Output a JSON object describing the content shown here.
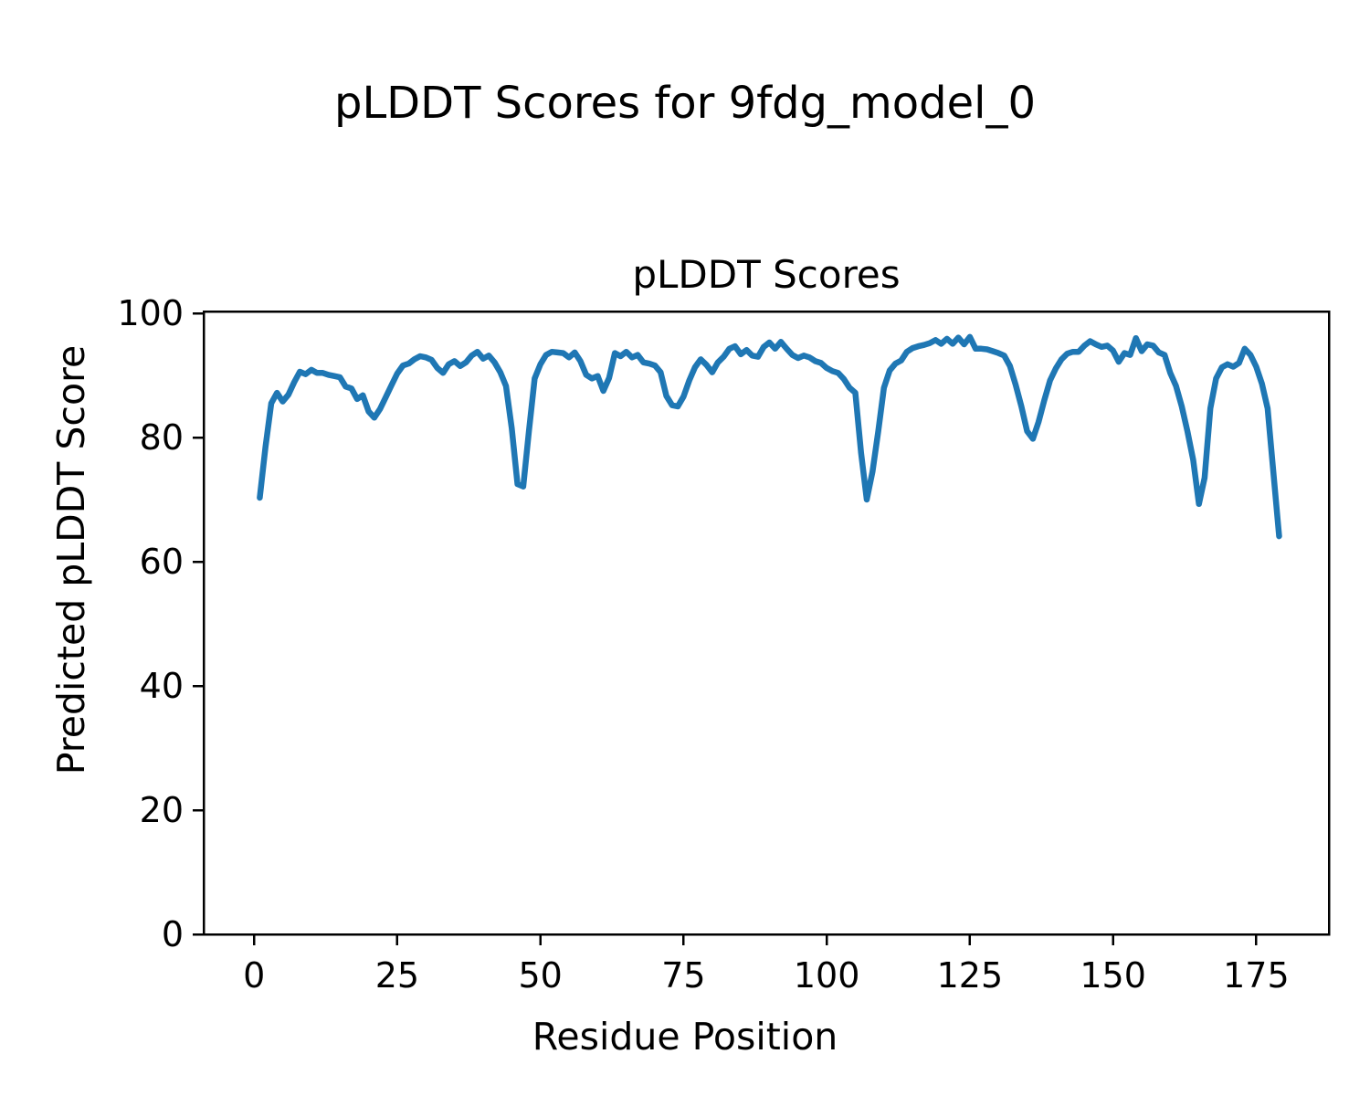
{
  "figure": {
    "suptitle": "pLDDT Scores for 9fdg_model_0",
    "background": "#ffffff",
    "text_color": "#000000"
  },
  "chart_data": {
    "type": "line",
    "title": "pLDDT Scores",
    "xlabel": "Residue Position",
    "ylabel": "Predicted pLDDT Score",
    "legend": null,
    "grid": false,
    "line_color": "#1f77b4",
    "line_width": 6.5,
    "spine_color": "#000000",
    "xlim": [
      -8.8,
      187.7
    ],
    "ylim": [
      0,
      100.3
    ],
    "xticks": [
      0,
      25,
      50,
      75,
      100,
      125,
      150,
      175
    ],
    "yticks": [
      0,
      20,
      40,
      60,
      80,
      100
    ],
    "series": [
      {
        "name": "pLDDT",
        "x_start": 1,
        "x_step": 1,
        "y": [
          70.3,
          78.5,
          85.5,
          87.2,
          85.8,
          86.9,
          88.9,
          90.6,
          90.2,
          90.9,
          90.4,
          90.4,
          90.1,
          89.9,
          89.7,
          88.2,
          87.9,
          86.2,
          86.8,
          84.2,
          83.2,
          84.6,
          86.5,
          88.4,
          90.3,
          91.6,
          91.9,
          92.6,
          93.1,
          92.9,
          92.5,
          91.2,
          90.4,
          91.8,
          92.3,
          91.5,
          92.1,
          93.2,
          93.8,
          92.7,
          93.2,
          92.1,
          90.5,
          88.3,
          81.5,
          72.5,
          72.1,
          81.0,
          89.5,
          91.8,
          93.3,
          93.8,
          93.7,
          93.6,
          92.9,
          93.7,
          92.3,
          90.1,
          89.5,
          89.9,
          87.5,
          89.6,
          93.6,
          93.1,
          93.8,
          92.9,
          93.3,
          92.1,
          91.9,
          91.6,
          90.5,
          86.7,
          85.2,
          85.0,
          86.6,
          89.2,
          91.3,
          92.6,
          91.7,
          90.5,
          92.1,
          93.0,
          94.3,
          94.7,
          93.4,
          94.1,
          93.2,
          93.0,
          94.6,
          95.3,
          94.3,
          95.4,
          94.3,
          93.3,
          92.8,
          93.2,
          92.9,
          92.3,
          92.0,
          91.2,
          90.7,
          90.4,
          89.4,
          88.0,
          87.2,
          77.5,
          70.0,
          74.5,
          81.0,
          88.0,
          90.8,
          91.9,
          92.4,
          93.8,
          94.4,
          94.7,
          94.9,
          95.2,
          95.7,
          95.1,
          95.9,
          95.1,
          96.1,
          95.0,
          96.2,
          94.3,
          94.3,
          94.2,
          93.9,
          93.6,
          93.2,
          91.5,
          88.5,
          85.0,
          81.0,
          79.8,
          82.5,
          86.0,
          89.2,
          91.1,
          92.6,
          93.5,
          93.8,
          93.8,
          94.8,
          95.5,
          95.0,
          94.6,
          94.8,
          94.0,
          92.2,
          93.6,
          93.3,
          96.0,
          93.9,
          95.0,
          94.8,
          93.7,
          93.3,
          90.4,
          88.3,
          85.0,
          81.0,
          76.4,
          69.3,
          73.5,
          84.7,
          89.5,
          91.3,
          91.8,
          91.4,
          92.0,
          94.3,
          93.3,
          91.4,
          88.7,
          84.7,
          74.4,
          64.1
        ]
      }
    ]
  }
}
